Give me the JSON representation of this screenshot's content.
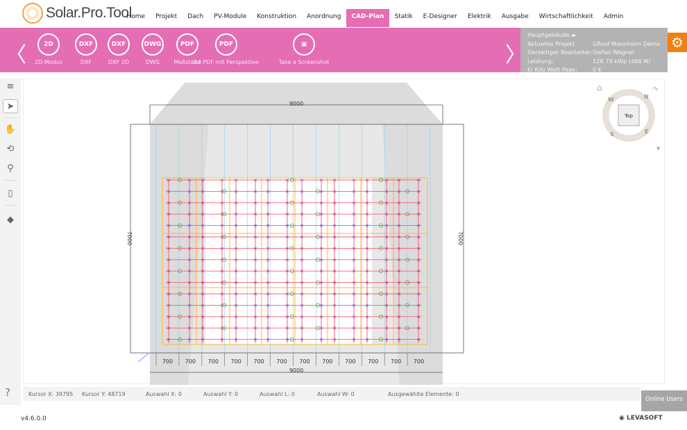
{
  "app": {
    "brand_small": "Levasoft",
    "brand": "Solar.Pro.Tool",
    "version": "v4.6.0.0",
    "company": "LEVASOFT"
  },
  "nav": [
    "Home",
    "Projekt",
    "Dach",
    "PV-Module",
    "Konstruktion",
    "Anordnung",
    "CAD-Plan",
    "Statik",
    "E-Designer",
    "Elektrik",
    "Ausgabe",
    "Wirtschaftlichkeit",
    "Admin"
  ],
  "nav_active": "CAD-Plan",
  "toolbar": [
    {
      "icon": "2D",
      "label": "2D-Modus"
    },
    {
      "icon": "DXF",
      "label": "DXF"
    },
    {
      "icon": "DXF",
      "label": "DXF 2D"
    },
    {
      "icon": "DWG",
      "label": "DWG"
    },
    {
      "icon": "PDF",
      "label": "Maßstäbe"
    },
    {
      "icon": "PDF",
      "label": "A3 PDF mit Perspektive"
    },
    {
      "icon": "screenshot-icon",
      "label": "Take a Screenshot"
    }
  ],
  "info": {
    "building": "Hauptgebäude",
    "rows": [
      {
        "k": "Aktuelles Projekt",
        "v": "GRoof Mannheim Demo"
      },
      {
        "k": "Derzeitiger Bearbeiter:",
        "v": "Stefan Wagner"
      },
      {
        "k": "Leistung:",
        "v": "128.79 kWp (486 M)"
      },
      {
        "k": "€/ Kilo Watt Peak:",
        "v": "0 €"
      }
    ]
  },
  "drawing": {
    "width_label": "9000",
    "height_label": "7000",
    "segment_label": "700",
    "segments": 12
  },
  "viewcube": {
    "face": "Top",
    "n": "N",
    "e": "E",
    "s": "S",
    "w": "W"
  },
  "status": {
    "cursor_x": "Kursor X: 39795",
    "cursor_y": "Kursor Y: 48719",
    "sel_x": "Auswahl X: 0",
    "sel_y": "Auswahl Y: 0",
    "sel_l": "Auswahl L: 0",
    "sel_w": "Auswahl W: 0",
    "selected": "Ausgewählte Elemente: 0"
  },
  "online_users": "Online Users",
  "help": "?",
  "colors": {
    "accent": "#e46db4",
    "gear": "#f08010",
    "info_panel": "#b3b3b3"
  }
}
